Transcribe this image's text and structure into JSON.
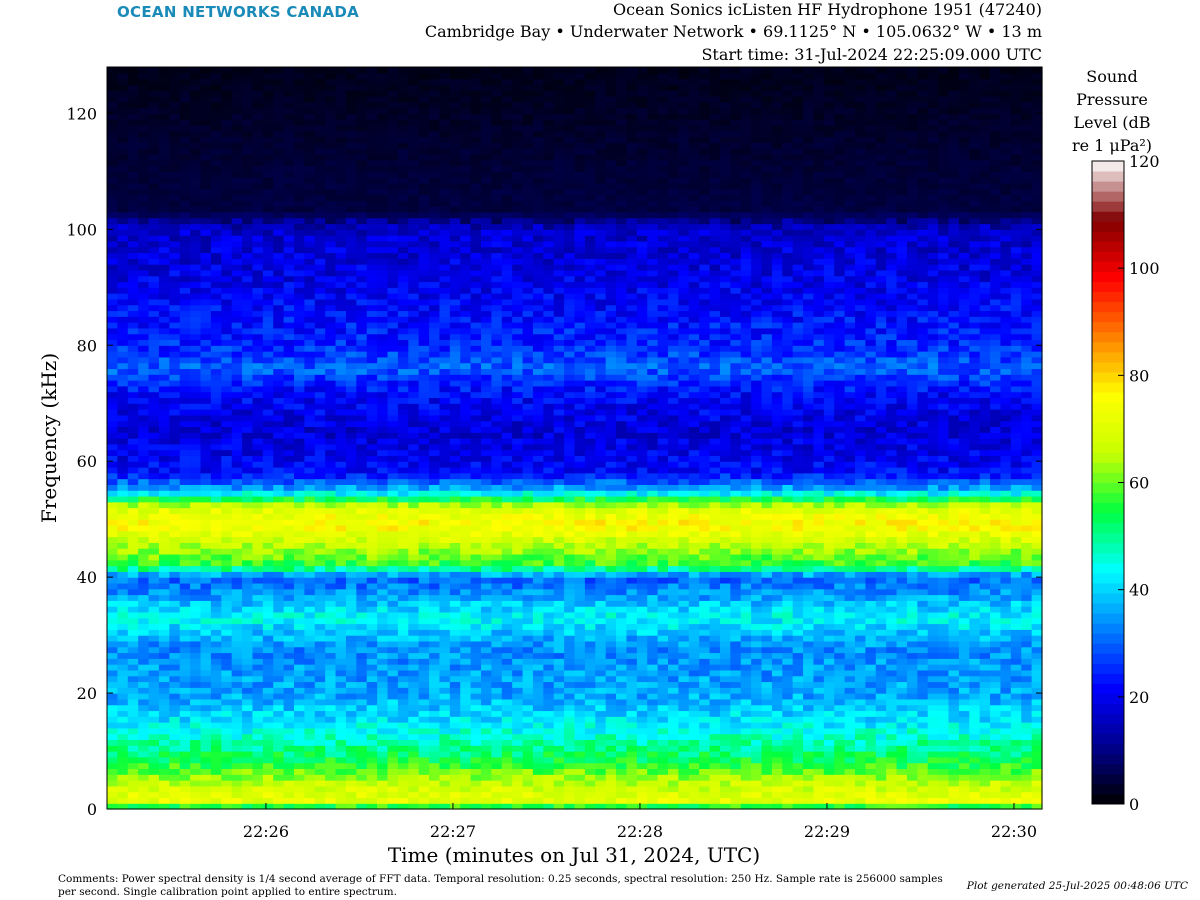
{
  "header": {
    "logo_text": "OCEAN NETWORKS CANADA",
    "line1": "Ocean Sonics icListen HF Hydrophone 1951 (47240)",
    "line2": "Cambridge Bay • Underwater Network • 69.1125° N • 105.0632° W • 13 m",
    "line3": "Start time: 31-Jul-2024 22:25:09.000 UTC"
  },
  "footer": {
    "comments": "Comments: Power spectral density is 1/4 second average of FFT data. Temporal resolution: 0.25 seconds, spectral resolution: 250 Hz. Sample rate is 256000 samples per second. Single calibration point applied to entire spectrum.",
    "generated": "Plot generated 25-Jul-2025 00:48:06 UTC"
  },
  "colors": {
    "logo": "#1a8ab8",
    "colormap": [
      "#000000",
      "#00008f",
      "#0000ff",
      "#0080ff",
      "#00ffff",
      "#00ff40",
      "#c8ff00",
      "#ffff00",
      "#ff8000",
      "#ff0000",
      "#800000",
      "#ffffff"
    ]
  },
  "chart_data": {
    "type": "heatmap",
    "xlabel": "Time (minutes on Jul 31, 2024, UTC)",
    "ylabel": "Frequency (kHz)",
    "x_ticks": [
      "22:26",
      "22:27",
      "22:28",
      "22:29",
      "22:30"
    ],
    "x_tick_minutes": [
      26,
      27,
      28,
      29,
      30
    ],
    "xlim_minutes": [
      25.15,
      30.15
    ],
    "y_ticks": [
      0,
      20,
      40,
      60,
      80,
      100,
      120
    ],
    "ylim": [
      0,
      128
    ],
    "colorbar": {
      "label": "Sound Pressure Level (dB re 1 μPa²)",
      "label_lines": [
        "Sound",
        "Pressure",
        "Level (dB",
        "re 1 μPa²)"
      ],
      "ticks": [
        0,
        20,
        40,
        60,
        80,
        100,
        120
      ],
      "range": [
        0,
        120
      ]
    },
    "spectral_profile_db": [
      {
        "khz": 0,
        "db": 40
      },
      {
        "khz": 1,
        "db": 72
      },
      {
        "khz": 4,
        "db": 68
      },
      {
        "khz": 8,
        "db": 55
      },
      {
        "khz": 15,
        "db": 42
      },
      {
        "khz": 20,
        "db": 36
      },
      {
        "khz": 28,
        "db": 34
      },
      {
        "khz": 33,
        "db": 44
      },
      {
        "khz": 38,
        "db": 33
      },
      {
        "khz": 40,
        "db": 30
      },
      {
        "khz": 42,
        "db": 56
      },
      {
        "khz": 45,
        "db": 64
      },
      {
        "khz": 49,
        "db": 76
      },
      {
        "khz": 52,
        "db": 70
      },
      {
        "khz": 55,
        "db": 38
      },
      {
        "khz": 58,
        "db": 22
      },
      {
        "khz": 65,
        "db": 18
      },
      {
        "khz": 72,
        "db": 22
      },
      {
        "khz": 76,
        "db": 30
      },
      {
        "khz": 80,
        "db": 25
      },
      {
        "khz": 90,
        "db": 20
      },
      {
        "khz": 100,
        "db": 17
      },
      {
        "khz": 103,
        "db": 5
      },
      {
        "khz": 128,
        "db": 2
      }
    ]
  }
}
